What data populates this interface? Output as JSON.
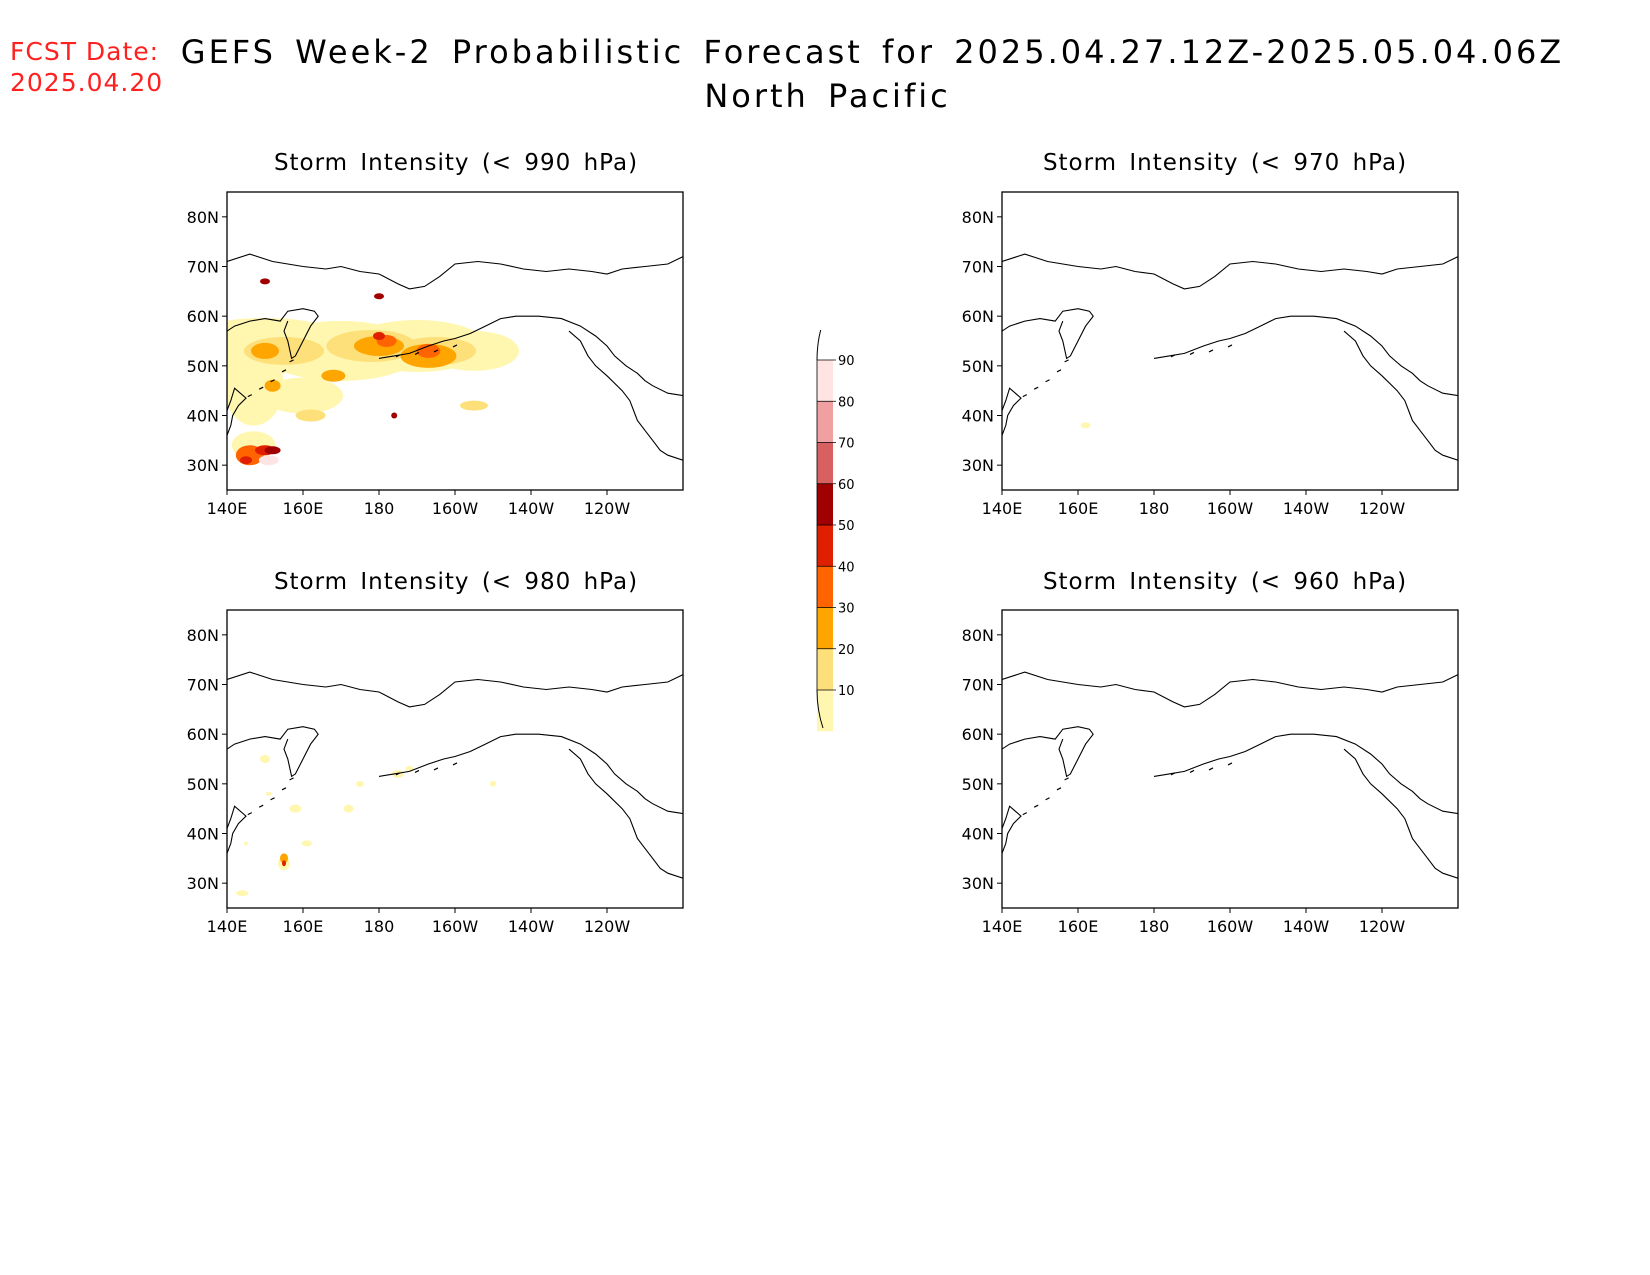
{
  "header": {
    "fcst_label": "FCST Date:",
    "fcst_date": "2025.04.20",
    "title_line1": "GEFS Week-2 Probabilistic Forecast for 2025.04.27.12Z-2025.05.04.06Z",
    "title_line2": "North Pacific"
  },
  "axes": {
    "lat_labels": [
      "80N",
      "70N",
      "60N",
      "50N",
      "40N",
      "30N"
    ],
    "lon_labels": [
      "140E",
      "160E",
      "180",
      "160W",
      "140W",
      "120W"
    ]
  },
  "panels": [
    {
      "id": "p990",
      "title": "Storm Intensity (< 990 hPa)"
    },
    {
      "id": "p970",
      "title": "Storm Intensity (< 970 hPa)"
    },
    {
      "id": "p980",
      "title": "Storm Intensity (< 980 hPa)"
    },
    {
      "id": "p960",
      "title": "Storm Intensity (< 960 hPa)"
    }
  ],
  "colorbar": {
    "levels": [
      "10",
      "20",
      "30",
      "40",
      "50",
      "60",
      "70",
      "80",
      "90"
    ],
    "colors": [
      "#fff7b0",
      "#fde07a",
      "#ffa500",
      "#ff6400",
      "#e01e00",
      "#a00000",
      "#d96060",
      "#f0a0a0",
      "#ffe4e4"
    ]
  }
}
